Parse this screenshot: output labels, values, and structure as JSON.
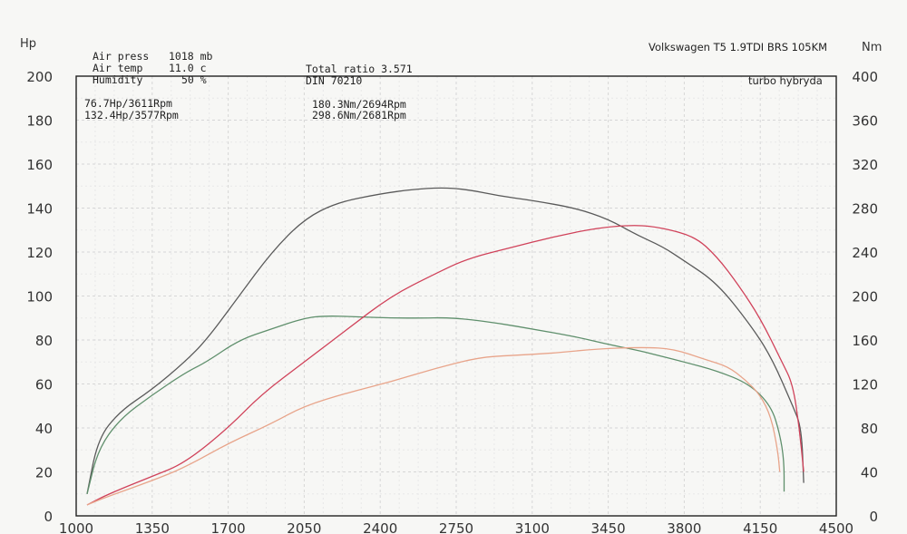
{
  "header": {
    "vehicle": "Volkswagen T5 1.9TDI BRS 105KM",
    "note": "turbo hybryda"
  },
  "conditions": {
    "air_press_label": "Air press",
    "air_press_value": "1018 mb",
    "air_temp_label": "Air temp",
    "air_temp_value": "11.0 c",
    "humidity_label": "Humidity",
    "humidity_value": "50 %",
    "total_ratio": "Total ratio 3.571",
    "din": "DIN 70210"
  },
  "peaks": {
    "power_stock": "76.7Hp/3611Rpm",
    "power_tuned": "132.4Hp/3577Rpm",
    "torque_stock": "180.3Nm/2694Rpm",
    "torque_tuned": "298.6Nm/2681Rpm"
  },
  "colors": {
    "power_stock": "#e8a48a",
    "power_tuned": "#d0425a",
    "torque_stock": "#5f8f6c",
    "torque_tuned": "#5a5a5a",
    "grid": "#d6d6d6"
  },
  "chart_data": {
    "type": "line",
    "title": "",
    "xlabel": "",
    "ylabel_left": "Hp",
    "ylabel_right": "Nm",
    "xlim": [
      1000,
      4500
    ],
    "ylim_left": [
      0,
      200
    ],
    "ylim_right": [
      0,
      400
    ],
    "x_ticks": [
      1000,
      1350,
      1700,
      2050,
      2400,
      2750,
      3100,
      3450,
      3800,
      4150,
      4500
    ],
    "y_ticks_left": [
      0,
      20,
      40,
      60,
      80,
      100,
      120,
      140,
      160,
      180,
      200
    ],
    "y_ticks_right": [
      0,
      40,
      80,
      120,
      160,
      200,
      240,
      280,
      320,
      360,
      400
    ],
    "grid": true,
    "series": [
      {
        "name": "torque_tuned",
        "axis": "right",
        "color": "#5a5a5a",
        "points": [
          [
            1050,
            20
          ],
          [
            1100,
            70
          ],
          [
            1200,
            95
          ],
          [
            1350,
            115
          ],
          [
            1500,
            140
          ],
          [
            1600,
            160
          ],
          [
            1750,
            200
          ],
          [
            1900,
            240
          ],
          [
            2050,
            270
          ],
          [
            2200,
            285
          ],
          [
            2400,
            293
          ],
          [
            2550,
            297
          ],
          [
            2681,
            298.6
          ],
          [
            2800,
            297
          ],
          [
            2950,
            291
          ],
          [
            3100,
            287
          ],
          [
            3300,
            280
          ],
          [
            3450,
            270
          ],
          [
            3577,
            256
          ],
          [
            3700,
            245
          ],
          [
            3800,
            232
          ],
          [
            3950,
            212
          ],
          [
            4100,
            175
          ],
          [
            4200,
            145
          ],
          [
            4300,
            100
          ],
          [
            4340,
            80
          ],
          [
            4350,
            30
          ]
        ]
      },
      {
        "name": "torque_stock",
        "axis": "right",
        "color": "#5f8f6c",
        "points": [
          [
            1050,
            20
          ],
          [
            1100,
            60
          ],
          [
            1200,
            88
          ],
          [
            1350,
            110
          ],
          [
            1500,
            130
          ],
          [
            1600,
            140
          ],
          [
            1750,
            160
          ],
          [
            1900,
            170
          ],
          [
            2050,
            180
          ],
          [
            2150,
            182
          ],
          [
            2300,
            181
          ],
          [
            2450,
            180
          ],
          [
            2600,
            180
          ],
          [
            2694,
            180.3
          ],
          [
            2800,
            179
          ],
          [
            2950,
            175
          ],
          [
            3100,
            170
          ],
          [
            3300,
            163
          ],
          [
            3450,
            156
          ],
          [
            3600,
            150
          ],
          [
            3700,
            145
          ],
          [
            3800,
            140
          ],
          [
            3950,
            132
          ],
          [
            4100,
            120
          ],
          [
            4200,
            100
          ],
          [
            4240,
            75
          ],
          [
            4260,
            50
          ],
          [
            4260,
            22
          ]
        ]
      },
      {
        "name": "power_tuned",
        "axis": "left",
        "color": "#d0425a",
        "points": [
          [
            1050,
            5
          ],
          [
            1150,
            10
          ],
          [
            1350,
            18
          ],
          [
            1500,
            24
          ],
          [
            1700,
            40
          ],
          [
            1850,
            55
          ],
          [
            2050,
            70
          ],
          [
            2250,
            85
          ],
          [
            2450,
            100
          ],
          [
            2650,
            110
          ],
          [
            2800,
            117
          ],
          [
            3000,
            122
          ],
          [
            3200,
            127
          ],
          [
            3400,
            131
          ],
          [
            3577,
            132.4
          ],
          [
            3700,
            131
          ],
          [
            3850,
            127
          ],
          [
            3950,
            118
          ],
          [
            4050,
            105
          ],
          [
            4150,
            90
          ],
          [
            4250,
            70
          ],
          [
            4300,
            60
          ],
          [
            4330,
            40
          ],
          [
            4350,
            20
          ]
        ]
      },
      {
        "name": "power_stock",
        "axis": "left",
        "color": "#e8a48a",
        "points": [
          [
            1050,
            5
          ],
          [
            1150,
            9
          ],
          [
            1350,
            16
          ],
          [
            1500,
            22
          ],
          [
            1700,
            33
          ],
          [
            1900,
            42
          ],
          [
            2050,
            50
          ],
          [
            2250,
            56
          ],
          [
            2450,
            61
          ],
          [
            2650,
            67
          ],
          [
            2850,
            72
          ],
          [
            3000,
            73
          ],
          [
            3200,
            74
          ],
          [
            3400,
            76
          ],
          [
            3611,
            76.7
          ],
          [
            3750,
            76
          ],
          [
            3900,
            71
          ],
          [
            4000,
            68
          ],
          [
            4080,
            62
          ],
          [
            4150,
            55
          ],
          [
            4200,
            45
          ],
          [
            4230,
            30
          ],
          [
            4240,
            20
          ]
        ]
      }
    ]
  }
}
